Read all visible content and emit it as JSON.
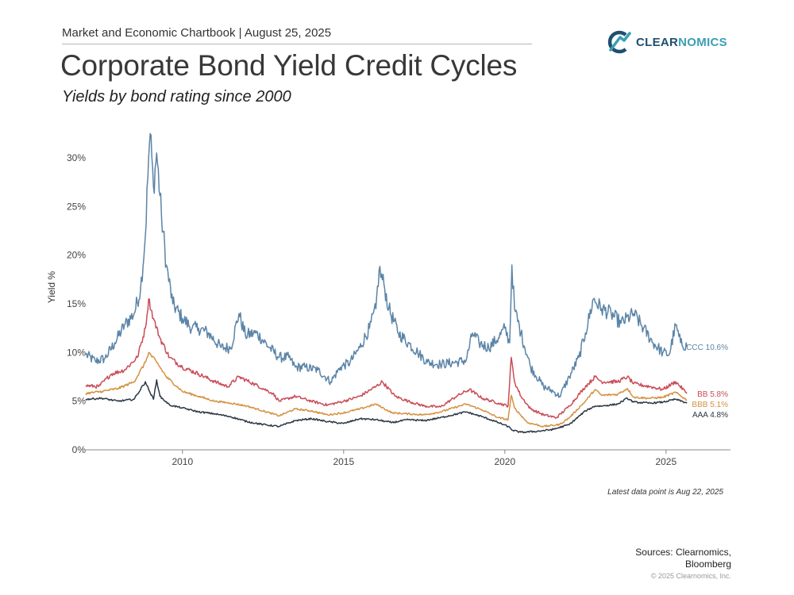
{
  "header": {
    "chartbook": "Market and Economic Chartbook | August 25, 2025",
    "title": "Corporate Bond Yield Credit Cycles",
    "subtitle": "Yields by bond rating since 2000"
  },
  "logo": {
    "text_a": "CLEAR",
    "text_b": "NOMICS",
    "icon": "clearnomics-logo-icon"
  },
  "footer": {
    "latest_note": "Latest data point is Aug 22, 2025",
    "sources_line1": "Sources: Clearnomics,",
    "sources_line2": "Bloomberg",
    "copyright": "© 2025 Clearnomics, Inc."
  },
  "chart_data": {
    "type": "line",
    "title": "Corporate Bond Yield Credit Cycles",
    "xlabel": "",
    "ylabel": "Yield %",
    "xlim": [
      2007.0,
      2027.0
    ],
    "ylim": [
      0,
      34
    ],
    "x_ticks": [
      2010,
      2015,
      2020,
      2025
    ],
    "x_tick_labels": [
      "2010",
      "2015",
      "2020",
      "2025"
    ],
    "y_ticks": [
      0,
      5,
      10,
      15,
      20,
      25,
      30
    ],
    "y_tick_labels": [
      "0%",
      "5%",
      "10%",
      "15%",
      "20%",
      "25%",
      "30%"
    ],
    "grid": false,
    "series": [
      {
        "name": "CCC",
        "end_label": "CCC 10.6%",
        "color": "#5b84a7",
        "points": [
          [
            2007.0,
            9.8
          ],
          [
            2007.3,
            9.1
          ],
          [
            2007.6,
            9.4
          ],
          [
            2007.9,
            11.0
          ],
          [
            2008.2,
            12.8
          ],
          [
            2008.5,
            14.0
          ],
          [
            2008.7,
            16.5
          ],
          [
            2008.85,
            22.0
          ],
          [
            2008.95,
            30.0
          ],
          [
            2009.0,
            32.5
          ],
          [
            2009.1,
            27.0
          ],
          [
            2009.2,
            30.5
          ],
          [
            2009.35,
            24.0
          ],
          [
            2009.5,
            19.0
          ],
          [
            2009.7,
            15.0
          ],
          [
            2010.0,
            13.5
          ],
          [
            2010.3,
            12.5
          ],
          [
            2010.5,
            12.5
          ],
          [
            2010.8,
            12.0
          ],
          [
            2011.2,
            10.5
          ],
          [
            2011.5,
            10.5
          ],
          [
            2011.75,
            14.0
          ],
          [
            2011.95,
            11.8
          ],
          [
            2012.3,
            12.0
          ],
          [
            2012.7,
            10.5
          ],
          [
            2013.0,
            9.5
          ],
          [
            2013.3,
            9.5
          ],
          [
            2013.5,
            8.5
          ],
          [
            2013.8,
            8.5
          ],
          [
            2014.2,
            8.2
          ],
          [
            2014.6,
            7.0
          ],
          [
            2014.9,
            8.5
          ],
          [
            2015.2,
            9.0
          ],
          [
            2015.5,
            10.5
          ],
          [
            2015.8,
            12.5
          ],
          [
            2016.0,
            14.5
          ],
          [
            2016.1,
            18.5
          ],
          [
            2016.25,
            17.0
          ],
          [
            2016.4,
            14.5
          ],
          [
            2016.7,
            12.0
          ],
          [
            2017.0,
            11.0
          ],
          [
            2017.3,
            10.0
          ],
          [
            2017.6,
            9.0
          ],
          [
            2018.0,
            8.8
          ],
          [
            2018.5,
            9.0
          ],
          [
            2018.8,
            9.2
          ],
          [
            2019.0,
            12.0
          ],
          [
            2019.2,
            11.0
          ],
          [
            2019.5,
            10.5
          ],
          [
            2019.8,
            11.5
          ],
          [
            2020.0,
            12.5
          ],
          [
            2020.15,
            11.0
          ],
          [
            2020.22,
            19.0
          ],
          [
            2020.3,
            14.5
          ],
          [
            2020.5,
            12.0
          ],
          [
            2020.8,
            8.5
          ],
          [
            2021.2,
            6.5
          ],
          [
            2021.5,
            6.0
          ],
          [
            2021.7,
            5.5
          ],
          [
            2022.0,
            7.5
          ],
          [
            2022.3,
            9.5
          ],
          [
            2022.5,
            12.0
          ],
          [
            2022.75,
            15.5
          ],
          [
            2023.0,
            14.5
          ],
          [
            2023.3,
            14.0
          ],
          [
            2023.6,
            13.0
          ],
          [
            2024.0,
            14.0
          ],
          [
            2024.3,
            12.5
          ],
          [
            2024.6,
            11.0
          ],
          [
            2024.9,
            10.0
          ],
          [
            2025.1,
            9.8
          ],
          [
            2025.3,
            12.8
          ],
          [
            2025.45,
            11.0
          ],
          [
            2025.65,
            10.6
          ]
        ]
      },
      {
        "name": "BB",
        "end_label": "BB 5.8%",
        "color": "#c94c57",
        "points": [
          [
            2007.0,
            6.6
          ],
          [
            2007.4,
            6.5
          ],
          [
            2007.8,
            7.8
          ],
          [
            2008.2,
            8.2
          ],
          [
            2008.6,
            9.5
          ],
          [
            2008.85,
            12.5
          ],
          [
            2008.95,
            15.5
          ],
          [
            2009.1,
            13.5
          ],
          [
            2009.3,
            11.5
          ],
          [
            2009.6,
            9.5
          ],
          [
            2010.0,
            8.5
          ],
          [
            2010.5,
            7.8
          ],
          [
            2011.0,
            7.0
          ],
          [
            2011.4,
            6.5
          ],
          [
            2011.75,
            7.5
          ],
          [
            2012.2,
            6.8
          ],
          [
            2012.8,
            5.8
          ],
          [
            2013.0,
            5.0
          ],
          [
            2013.5,
            5.5
          ],
          [
            2014.0,
            5.0
          ],
          [
            2014.5,
            4.6
          ],
          [
            2015.0,
            5.0
          ],
          [
            2015.5,
            5.5
          ],
          [
            2016.0,
            6.5
          ],
          [
            2016.2,
            7.0
          ],
          [
            2016.6,
            5.5
          ],
          [
            2017.0,
            5.0
          ],
          [
            2017.5,
            4.5
          ],
          [
            2018.0,
            4.4
          ],
          [
            2018.5,
            5.5
          ],
          [
            2018.9,
            6.2
          ],
          [
            2019.3,
            5.3
          ],
          [
            2019.8,
            4.8
          ],
          [
            2020.1,
            4.5
          ],
          [
            2020.2,
            9.5
          ],
          [
            2020.3,
            7.0
          ],
          [
            2020.5,
            5.5
          ],
          [
            2020.8,
            4.2
          ],
          [
            2021.2,
            3.6
          ],
          [
            2021.6,
            3.3
          ],
          [
            2022.0,
            4.5
          ],
          [
            2022.5,
            6.5
          ],
          [
            2022.8,
            7.5
          ],
          [
            2023.0,
            7.0
          ],
          [
            2023.5,
            7.0
          ],
          [
            2023.8,
            7.5
          ],
          [
            2024.0,
            6.8
          ],
          [
            2024.5,
            6.5
          ],
          [
            2024.9,
            6.2
          ],
          [
            2025.3,
            7.0
          ],
          [
            2025.65,
            5.8
          ]
        ]
      },
      {
        "name": "BBB",
        "end_label": "BBB 5.1%",
        "color": "#d4913f",
        "points": [
          [
            2007.0,
            5.8
          ],
          [
            2007.5,
            6.0
          ],
          [
            2008.0,
            6.3
          ],
          [
            2008.5,
            7.0
          ],
          [
            2008.85,
            9.0
          ],
          [
            2008.95,
            10.0
          ],
          [
            2009.2,
            9.0
          ],
          [
            2009.5,
            7.5
          ],
          [
            2010.0,
            6.0
          ],
          [
            2010.5,
            5.5
          ],
          [
            2011.0,
            5.0
          ],
          [
            2011.5,
            4.8
          ],
          [
            2012.0,
            4.5
          ],
          [
            2012.7,
            3.8
          ],
          [
            2013.0,
            3.5
          ],
          [
            2013.5,
            4.2
          ],
          [
            2014.0,
            4.0
          ],
          [
            2014.5,
            3.6
          ],
          [
            2015.0,
            3.8
          ],
          [
            2015.5,
            4.2
          ],
          [
            2016.0,
            4.7
          ],
          [
            2016.5,
            3.8
          ],
          [
            2017.0,
            3.7
          ],
          [
            2017.5,
            3.6
          ],
          [
            2018.0,
            3.9
          ],
          [
            2018.8,
            4.7
          ],
          [
            2019.3,
            4.1
          ],
          [
            2019.8,
            3.3
          ],
          [
            2020.1,
            3.1
          ],
          [
            2020.2,
            5.6
          ],
          [
            2020.3,
            4.3
          ],
          [
            2020.7,
            2.8
          ],
          [
            2021.2,
            2.4
          ],
          [
            2021.7,
            2.6
          ],
          [
            2022.0,
            3.3
          ],
          [
            2022.5,
            5.0
          ],
          [
            2022.8,
            6.2
          ],
          [
            2023.0,
            5.6
          ],
          [
            2023.5,
            5.7
          ],
          [
            2023.8,
            6.3
          ],
          [
            2024.0,
            5.4
          ],
          [
            2024.5,
            5.3
          ],
          [
            2024.9,
            5.4
          ],
          [
            2025.3,
            5.9
          ],
          [
            2025.65,
            5.1
          ]
        ]
      },
      {
        "name": "AAA",
        "end_label": "AAA 4.8%",
        "color": "#2b3745",
        "points": [
          [
            2007.0,
            5.2
          ],
          [
            2007.5,
            5.3
          ],
          [
            2008.0,
            5.0
          ],
          [
            2008.5,
            5.2
          ],
          [
            2008.85,
            7.0
          ],
          [
            2008.95,
            6.2
          ],
          [
            2009.1,
            5.2
          ],
          [
            2009.2,
            7.2
          ],
          [
            2009.3,
            5.5
          ],
          [
            2009.6,
            4.6
          ],
          [
            2010.0,
            4.3
          ],
          [
            2010.5,
            3.9
          ],
          [
            2011.0,
            3.7
          ],
          [
            2011.5,
            3.4
          ],
          [
            2012.0,
            2.9
          ],
          [
            2012.5,
            2.6
          ],
          [
            2013.0,
            2.4
          ],
          [
            2013.5,
            3.0
          ],
          [
            2014.0,
            3.2
          ],
          [
            2014.5,
            2.9
          ],
          [
            2015.0,
            2.7
          ],
          [
            2015.5,
            3.2
          ],
          [
            2016.0,
            3.1
          ],
          [
            2016.5,
            2.8
          ],
          [
            2017.0,
            3.1
          ],
          [
            2017.5,
            3.0
          ],
          [
            2018.0,
            3.3
          ],
          [
            2018.8,
            3.9
          ],
          [
            2019.3,
            3.4
          ],
          [
            2019.8,
            2.8
          ],
          [
            2020.1,
            2.4
          ],
          [
            2020.25,
            2.0
          ],
          [
            2020.5,
            1.8
          ],
          [
            2021.0,
            1.9
          ],
          [
            2021.5,
            2.1
          ],
          [
            2022.0,
            2.6
          ],
          [
            2022.5,
            4.0
          ],
          [
            2022.8,
            4.5
          ],
          [
            2023.0,
            4.5
          ],
          [
            2023.5,
            4.7
          ],
          [
            2023.8,
            5.3
          ],
          [
            2024.0,
            4.9
          ],
          [
            2024.5,
            4.8
          ],
          [
            2024.9,
            4.9
          ],
          [
            2025.3,
            5.2
          ],
          [
            2025.65,
            4.8
          ]
        ]
      }
    ]
  }
}
